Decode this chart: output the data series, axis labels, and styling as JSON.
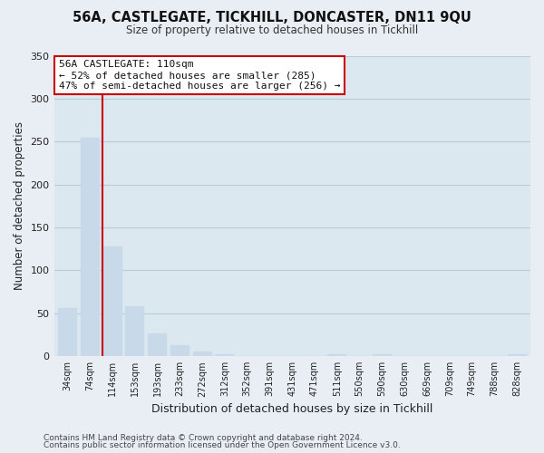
{
  "title": "56A, CASTLEGATE, TICKHILL, DONCASTER, DN11 9QU",
  "subtitle": "Size of property relative to detached houses in Tickhill",
  "xlabel": "Distribution of detached houses by size in Tickhill",
  "ylabel": "Number of detached properties",
  "bar_labels": [
    "34sqm",
    "74sqm",
    "114sqm",
    "153sqm",
    "193sqm",
    "233sqm",
    "272sqm",
    "312sqm",
    "352sqm",
    "391sqm",
    "431sqm",
    "471sqm",
    "511sqm",
    "550sqm",
    "590sqm",
    "630sqm",
    "669sqm",
    "709sqm",
    "749sqm",
    "788sqm",
    "828sqm"
  ],
  "bar_values": [
    56,
    255,
    128,
    58,
    27,
    13,
    5,
    2,
    0,
    0,
    0,
    0,
    2,
    0,
    2,
    0,
    0,
    0,
    0,
    0,
    2
  ],
  "bar_color": "#c8daea",
  "highlight_bar_index": 2,
  "highlight_color": "#cc0000",
  "ylim": [
    0,
    350
  ],
  "yticks": [
    0,
    50,
    100,
    150,
    200,
    250,
    300,
    350
  ],
  "annotation_title": "56A CASTLEGATE: 110sqm",
  "annotation_line1": "← 52% of detached houses are smaller (285)",
  "annotation_line2": "47% of semi-detached houses are larger (256) →",
  "footer_line1": "Contains HM Land Registry data © Crown copyright and database right 2024.",
  "footer_line2": "Contains public sector information licensed under the Open Government Licence v3.0.",
  "background_color": "#e8eef4",
  "plot_background_color": "#dce8f0",
  "grid_color": "#b8ccd8"
}
